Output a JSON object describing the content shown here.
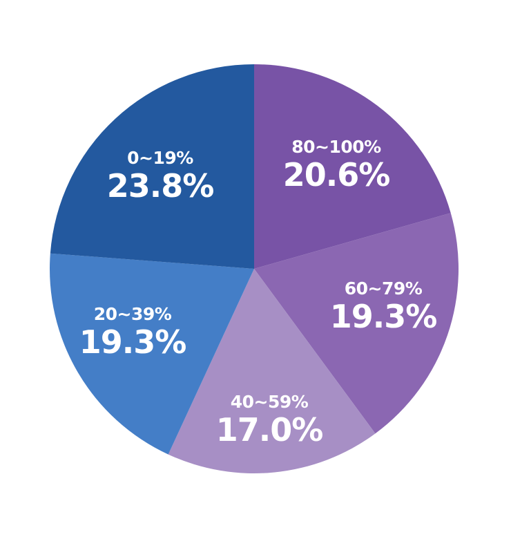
{
  "chart_data": {
    "type": "pie",
    "title": "",
    "start_angle_deg": 0,
    "direction": "clockwise",
    "categories": [
      "80~100%",
      "60~79%",
      "40~59%",
      "20~39%",
      "0~19%"
    ],
    "values": [
      20.6,
      19.3,
      17.0,
      19.3,
      23.8
    ],
    "value_labels": [
      "20.6%",
      "19.3%",
      "17.0%",
      "19.3%",
      "23.8%"
    ],
    "colors": [
      "#7853a6",
      "#8b67b2",
      "#a78fc5",
      "#447ec7",
      "#23599f"
    ],
    "legend": "none",
    "labels_inside": true
  },
  "slices": [
    {
      "category": "80~100%",
      "value": "20.6%"
    },
    {
      "category": "60~79%",
      "value": "19.3%"
    },
    {
      "category": "40~59%",
      "value": "17.0%"
    },
    {
      "category": "20~39%",
      "value": "19.3%"
    },
    {
      "category": "0~19%",
      "value": "23.8%"
    }
  ]
}
